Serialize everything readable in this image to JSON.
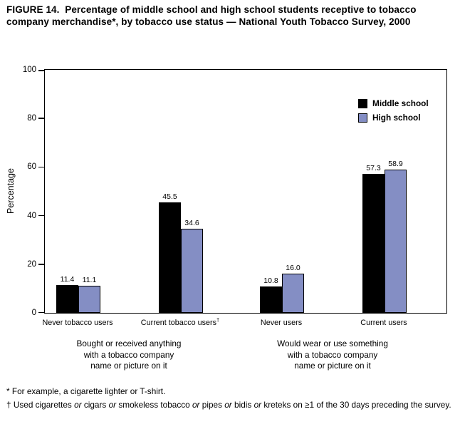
{
  "figure": {
    "title": "FIGURE 14.  Percentage of middle school and high school students receptive to tobacco company merchandise*, by tobacco use status — National Youth Tobacco Survey, 2000"
  },
  "chart_data": {
    "type": "bar",
    "title": "",
    "ylabel": "Percentage",
    "xlabel": "",
    "ylim": [
      0,
      100
    ],
    "yticks": [
      0,
      20,
      40,
      60,
      80,
      100
    ],
    "grid": false,
    "legend_position": "top-right-inside",
    "categories": [
      "Never tobacco users",
      "Current tobacco users†",
      "Never users",
      "Current users"
    ],
    "series": [
      {
        "name": "Middle school",
        "color": "#000000",
        "values": [
          11.4,
          45.5,
          10.8,
          57.3
        ],
        "labels": [
          "11.4",
          "45.5",
          "10.8",
          "57.3"
        ]
      },
      {
        "name": "High school",
        "color": "#848ec4",
        "values": [
          11.1,
          34.6,
          16.0,
          58.9
        ],
        "labels": [
          "11.1",
          "34.6",
          "16.0",
          "58.9"
        ]
      }
    ],
    "group_captions": [
      {
        "lines": [
          "Bought or received anything",
          "with a tobacco company",
          "name or picture on it"
        ]
      },
      {
        "lines": [
          "Would wear or use something",
          "with a tobacco company",
          "name or picture on it"
        ]
      }
    ]
  },
  "footnotes": [
    {
      "id": "asterisk",
      "segments": [
        {
          "text": "* For example, a cigarette lighter or T-shirt."
        }
      ]
    },
    {
      "id": "dagger",
      "segments": [
        {
          "text": "† Used cigarettes "
        },
        {
          "text": "or",
          "italic": true
        },
        {
          "text": " cigars "
        },
        {
          "text": "or",
          "italic": true
        },
        {
          "text": " smokeless tobacco "
        },
        {
          "text": "or",
          "italic": true
        },
        {
          "text": " pipes "
        },
        {
          "text": "or",
          "italic": true
        },
        {
          "text": " bidis "
        },
        {
          "text": "or",
          "italic": true
        },
        {
          "text": " kreteks on ≥1 of the 30 days preceding the survey."
        }
      ]
    }
  ]
}
